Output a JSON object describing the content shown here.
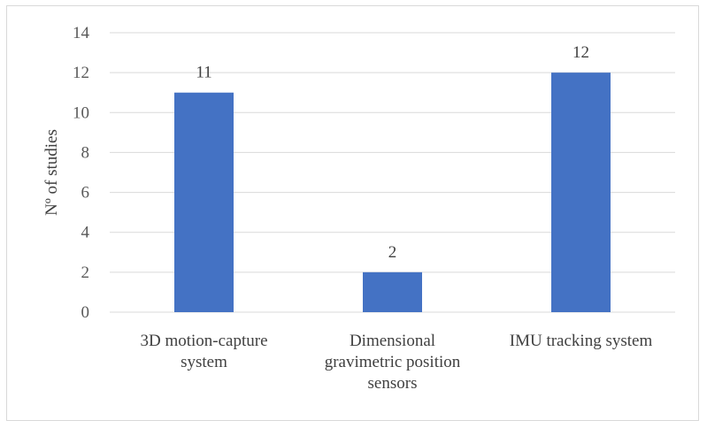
{
  "chart_data": {
    "type": "bar",
    "title": "",
    "xlabel": "",
    "ylabel": "Nº of studies",
    "categories": [
      [
        "3D motion-capture",
        "system"
      ],
      [
        "Dimensional",
        "gravimetric position",
        "sensors"
      ],
      [
        "IMU tracking system"
      ]
    ],
    "values": [
      11,
      2,
      12
    ],
    "data_labels": [
      "11",
      "2",
      "12"
    ],
    "ylim": [
      0,
      14
    ],
    "yticks": [
      0,
      2,
      4,
      6,
      8,
      10,
      12,
      14
    ],
    "grid": true,
    "legend": "none",
    "colors": {
      "bar": "#4472c4",
      "grid": "#d9d9d9",
      "axis": "#d9d9d9"
    }
  }
}
